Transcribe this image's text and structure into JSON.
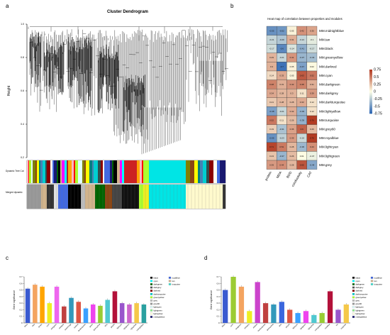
{
  "panel_letters": {
    "a": "a",
    "b": "b",
    "c": "c",
    "d": "d"
  },
  "chart_data": [
    {
      "type": "dendrogram",
      "title": "Cluster Dendrogram",
      "ylabel": "Height",
      "yticks": [
        "1.0",
        "0.8",
        "0.6",
        "0.4",
        "0.2"
      ],
      "ylim": [
        0.2,
        1.0
      ],
      "color_bar_labels": [
        "Dynamic Tree Cut",
        "Merged dynamic"
      ],
      "module_colors": [
        "#d2b48c",
        "#808000",
        "#4169e1",
        "#ffb6c1",
        "#00ced1",
        "#ff00ff",
        "#8b4513",
        "#191970",
        "#ff0000",
        "#2f4f4f",
        "#00ffff",
        "#ffff00",
        "#006400",
        "#adff2f",
        "#8b0000",
        "#a52a2a",
        "#008080",
        "#000000",
        "#e0ffff",
        "#fffff0",
        "#ffa500",
        "#4682b4"
      ]
    },
    {
      "type": "heatmap",
      "title": "Heat map of correlation between properties and modules",
      "rows": [
        "MM.midnightblue",
        "MM.tan",
        "MM.black",
        "MM.greenyellow",
        "MM.darkred",
        "MM.cyan",
        "MM.darkgreen",
        "MM.darkgrey",
        "MM.darkturquoise",
        "MM.lightyellow",
        "MM.turquoise",
        "MM.grey60",
        "MM.royalblue",
        "MM.lightcyan",
        "MM.lightgreen",
        "MM.grey"
      ],
      "columns": [
        "protein",
        "MDA",
        "BOD",
        "conductivity",
        "CAT"
      ],
      "values": [
        [
          -0.55,
          -0.52,
          0.05,
          0.42,
          0.35
        ],
        [
          -0.21,
          -0.29,
          0.31,
          -0.21,
          -0.1
        ],
        [
          -0.17,
          -0.6,
          -0.14,
          -0.41,
          -0.17
        ],
        [
          0.29,
          -0.21,
          0.41,
          -0.37,
          -0.33
        ],
        [
          0.3,
          -0.7,
          0.05,
          -0.47,
          0.02
        ],
        [
          0.14,
          0.33,
          0.05,
          0.63,
          0.52
        ],
        [
          0.48,
          0.31,
          0.42,
          0.48,
          0.31
        ],
        [
          0.34,
          0.28,
          0.3,
          0.11,
          0.39
        ],
        [
          0.21,
          0.28,
          0.28,
          0.33,
          0.12
        ],
        [
          -0.48,
          -0.21,
          0.32,
          -0.39,
          0.12
        ],
        [
          0.52,
          0.11,
          0.26,
          -0.39,
          0.76
        ],
        [
          0.19,
          -0.31,
          0.36,
          0.6,
          0.26
        ],
        [
          -0.55,
          -0.23,
          0.39,
          -0.19,
          0.76
        ],
        [
          0.71,
          0.51,
          0.28,
          -0.36,
          0.43
        ],
        [
          0.23,
          -0.37,
          0.26,
          0.01,
          -0.07
        ],
        [
          0.39,
          0.44,
          0.28,
          0.65,
          -0.44
        ]
      ],
      "legend_ticks": [
        "0.75",
        "0.5",
        "0.25",
        "0",
        "-0.25",
        "-0.5",
        "-0.75"
      ],
      "legend_values": [
        0.75,
        0.5,
        0.25,
        0,
        -0.25,
        -0.5,
        -0.75
      ],
      "scale_min": -0.75,
      "scale_max": 0.75
    },
    {
      "type": "bar",
      "ylabel": "Gene significance",
      "yticks": [
        "0",
        "0.1",
        "0.2",
        "0.3",
        "0.4",
        "0.5",
        "0.6",
        "0.7"
      ],
      "ylim": [
        0,
        0.7
      ],
      "categories": [
        "black",
        "blue",
        "brown",
        "cyan",
        "darkgreen",
        "darkgrey",
        "darkorange",
        "darkred",
        "darkturquoise",
        "green",
        "greenyellow",
        "grey",
        "grey60",
        "lightcyan",
        "lightgreen",
        "lightyellow",
        "midnightblue"
      ],
      "values": [
        0.52,
        0.58,
        0.55,
        0.3,
        0.55,
        0.25,
        0.38,
        0.32,
        0.22,
        0.28,
        0.26,
        0.35,
        0.48,
        0.3,
        0.28,
        0.3,
        0.28
      ],
      "bar_colors": [
        "#3a5ad0",
        "#f4a460",
        "#ffa500",
        "#eeee22",
        "#ee66ee",
        "#c04040",
        "#3399bb",
        "#dd5544",
        "#3aa0ff",
        "#ee44ee",
        "#99cc33",
        "#50c8d0",
        "#b3113a",
        "#9955cc",
        "#cc66cc",
        "#f5c84a",
        "#2aa0a0"
      ],
      "legend": [
        "black",
        "cyan",
        "darkgreen",
        "darkgrey",
        "darkred",
        "darkturquoise",
        "greenyellow",
        "grey",
        "grey60",
        "lightcyan",
        "lightgreen",
        "lightyellow",
        "midnightblue",
        "royalblue",
        "tan",
        "turquoise"
      ],
      "legend_colors": [
        "#000000",
        "#00ffff",
        "#006400",
        "#555555",
        "#8b0000",
        "#00ced1",
        "#adff2f",
        "#bebebe",
        "#999999",
        "#e0ffff",
        "#90ee90",
        "#ffffe0",
        "#191970",
        "#4169e1",
        "#d2b48c",
        "#40e0d0"
      ]
    },
    {
      "type": "bar",
      "ylabel": "Gene significance",
      "yticks": [
        "0",
        "0.1",
        "0.2",
        "0.3",
        "0.4",
        "0.5",
        "0.6",
        "0.7"
      ],
      "ylim": [
        0,
        0.7
      ],
      "categories": [
        "black",
        "cyan",
        "darkgreen",
        "darkgrey",
        "darkred",
        "darkturquoise",
        "greenyellow",
        "grey",
        "grey60",
        "lightcyan",
        "lightgreen",
        "lightyellow",
        "midnightblue",
        "royalblue",
        "tan",
        "turquoise"
      ],
      "values": [
        0.5,
        0.7,
        0.55,
        0.18,
        0.62,
        0.3,
        0.28,
        0.32,
        0.2,
        0.15,
        0.18,
        0.12,
        0.15,
        0.48,
        0.2,
        0.28
      ],
      "bar_colors": [
        "#3a5ad0",
        "#9ccc33",
        "#f4a460",
        "#eeee22",
        "#cc44cc",
        "#c04040",
        "#3399bb",
        "#3a66dd",
        "#dd5544",
        "#3aa0ff",
        "#ee44ee",
        "#50c8d0",
        "#99cc33",
        "#b3113a",
        "#9955cc",
        "#f5c84a"
      ],
      "legend": [
        "black",
        "cyan",
        "darkgreen",
        "darkgrey",
        "darkred",
        "darkturquoise",
        "greenyellow",
        "grey",
        "grey60",
        "lightcyan",
        "lightgreen",
        "lightyellow",
        "midnightblue",
        "royalblue",
        "tan",
        "turquoise"
      ],
      "legend_colors": [
        "#000000",
        "#00ffff",
        "#006400",
        "#555555",
        "#8b0000",
        "#00ced1",
        "#adff2f",
        "#bebebe",
        "#999999",
        "#e0ffff",
        "#90ee90",
        "#ffffe0",
        "#191970",
        "#4169e1",
        "#d2b48c",
        "#40e0d0"
      ]
    }
  ]
}
